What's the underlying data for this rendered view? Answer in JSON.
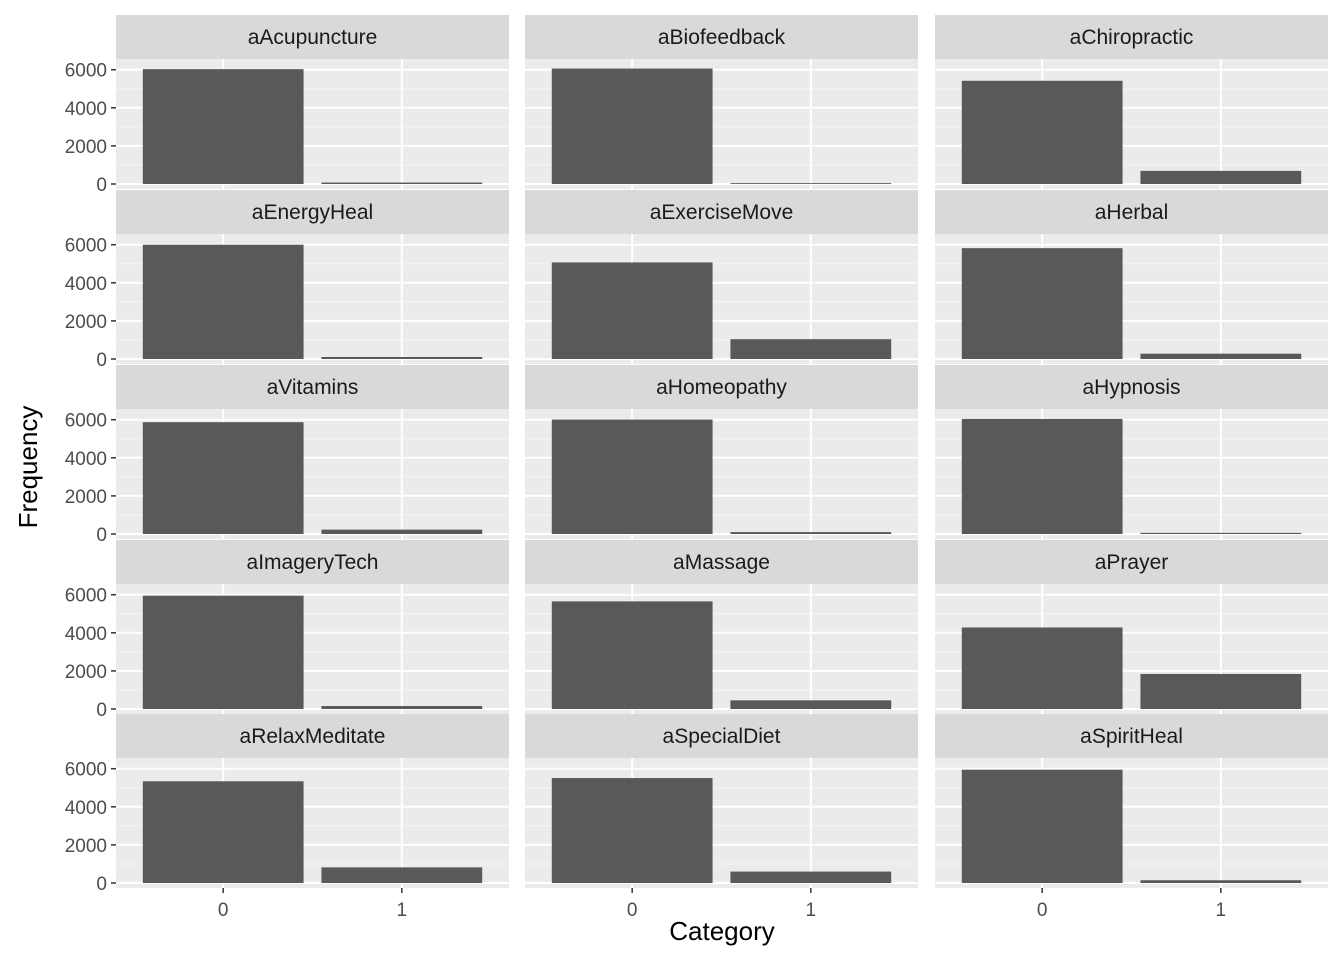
{
  "chart_data": {
    "type": "bar",
    "layout": "facet-grid",
    "ncol": 3,
    "xlabel": "Category",
    "ylabel": "Frequency",
    "categories": [
      "0",
      "1"
    ],
    "ylim": [
      0,
      6300
    ],
    "y_ticks": [
      0,
      2000,
      4000,
      6000
    ],
    "grid": true,
    "colors": {
      "bar": "#595959",
      "panel_bg": "#ebebeb",
      "strip_bg": "#d9d9d9",
      "grid_major": "#ffffff",
      "text": "#4d4d4d",
      "title_text": "#000000",
      "strip_text": "#1a1a1a"
    },
    "facets": [
      {
        "label": "aAcupuncture",
        "values": [
          6030,
          75
        ]
      },
      {
        "label": "aBiofeedback",
        "values": [
          6060,
          45
        ]
      },
      {
        "label": "aChiropractic",
        "values": [
          5420,
          690
        ]
      },
      {
        "label": "aEnergyHeal",
        "values": [
          6000,
          105
        ]
      },
      {
        "label": "aExerciseMove",
        "values": [
          5070,
          1040
        ]
      },
      {
        "label": "aHerbal",
        "values": [
          5820,
          280
        ]
      },
      {
        "label": "aVitamins",
        "values": [
          5870,
          230
        ]
      },
      {
        "label": "aHomeopathy",
        "values": [
          6010,
          100
        ]
      },
      {
        "label": "aHypnosis",
        "values": [
          6040,
          60
        ]
      },
      {
        "label": "aImageryTech",
        "values": [
          5950,
          155
        ]
      },
      {
        "label": "aMassage",
        "values": [
          5650,
          455
        ]
      },
      {
        "label": "aPrayer",
        "values": [
          4280,
          1840
        ]
      },
      {
        "label": "aRelaxMeditate",
        "values": [
          5340,
          820
        ]
      },
      {
        "label": "aSpecialDiet",
        "values": [
          5510,
          600
        ]
      },
      {
        "label": "aSpiritHeal",
        "values": [
          5950,
          145
        ]
      }
    ]
  }
}
